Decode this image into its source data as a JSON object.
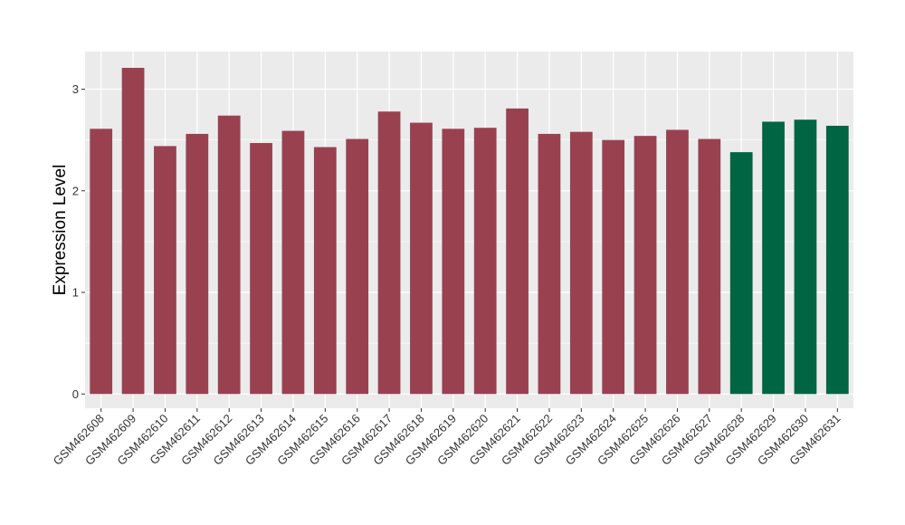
{
  "chart_data": {
    "type": "bar",
    "title": "",
    "xlabel": "",
    "ylabel": "Expression Level",
    "ylim": [
      -0.14,
      3.37
    ],
    "yticks": [
      0,
      1,
      2,
      3
    ],
    "grid": true,
    "categories": [
      "GSM462608",
      "GSM462609",
      "GSM462610",
      "GSM462611",
      "GSM462612",
      "GSM462613",
      "GSM462614",
      "GSM462615",
      "GSM462616",
      "GSM462617",
      "GSM462618",
      "GSM462619",
      "GSM462620",
      "GSM462621",
      "GSM462622",
      "GSM462623",
      "GSM462624",
      "GSM462625",
      "GSM462626",
      "GSM462627",
      "GSM462628",
      "GSM462629",
      "GSM462630",
      "GSM462631"
    ],
    "values": [
      2.61,
      3.21,
      2.44,
      2.56,
      2.74,
      2.47,
      2.59,
      2.43,
      2.51,
      2.78,
      2.67,
      2.61,
      2.62,
      2.81,
      2.56,
      2.58,
      2.5,
      2.54,
      2.6,
      2.51,
      2.38,
      2.68,
      2.7,
      2.64
    ],
    "groups": [
      "a",
      "a",
      "a",
      "a",
      "a",
      "a",
      "a",
      "a",
      "a",
      "a",
      "a",
      "a",
      "a",
      "a",
      "a",
      "a",
      "a",
      "a",
      "a",
      "a",
      "b",
      "b",
      "b",
      "b"
    ],
    "group_colors": {
      "a": "#9a4150",
      "b": "#006543"
    },
    "panel_color": "#ebebeb",
    "grid_color": "#ffffff"
  }
}
